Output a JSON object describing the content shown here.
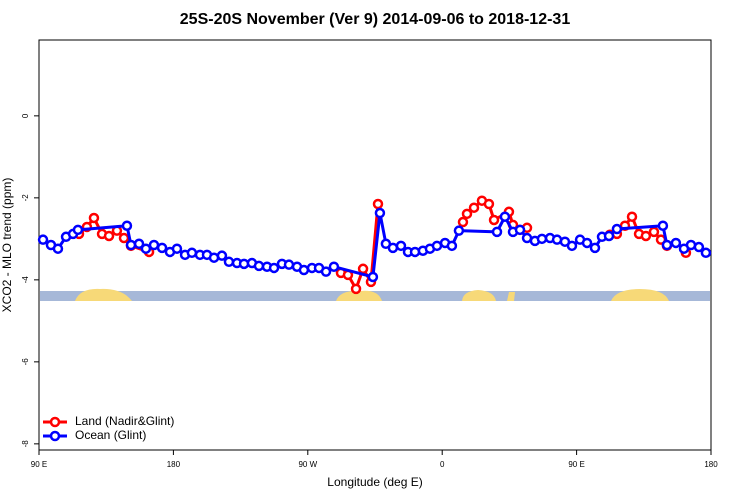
{
  "chart_data": {
    "type": "line",
    "title": "25S-20S November (Ver 9)   2014-09-06 to 2018-12-31",
    "x_label": "Longitude (deg E)",
    "y_label": "XCO2 - MLO trend (ppm)",
    "xlim": [
      90,
      540
    ],
    "ylim": [
      -8.15,
      1.85
    ],
    "xticks": [
      {
        "value": 90,
        "label": "90 E"
      },
      180,
      {
        "value": 270,
        "label": "90 W"
      },
      {
        "value": 360,
        "label": "0"
      },
      {
        "value": 450,
        "label": "90 E"
      },
      {
        "value": 540,
        "label": "180"
      }
    ],
    "yticks": [
      0,
      -2,
      -4,
      -6,
      -8
    ],
    "legend": "lower left",
    "series": [
      {
        "name": "Land (Nadir&Glint)",
        "color": "#ff0000",
        "x": [
          116.8,
          122.1,
          126.8,
          132.2,
          136.9,
          142.2,
          146.9,
          151.6,
          163.7,
          null,
          292.2,
          296.9,
          302.3,
          307.0,
          312.3,
          317.0,
          null,
          373.9,
          376.6,
          381.3,
          386.6,
          391.3,
          394.7,
          404.7,
          407.4,
          412.1,
          416.8,
          null,
          472.3,
          477.0,
          482.4,
          487.1,
          491.8,
          496.4,
          501.8,
          506.5,
          510.5,
          null,
          523.2
        ],
        "values": [
          -2.88,
          -2.71,
          -2.49,
          -2.88,
          -2.93,
          -2.8,
          -2.98,
          -3.17,
          -3.32,
          null,
          -3.83,
          -3.88,
          -4.22,
          -3.73,
          -4.05,
          -2.15,
          null,
          -2.59,
          -2.39,
          -2.24,
          -2.07,
          -2.15,
          -2.54,
          -2.34,
          -2.66,
          -2.78,
          -2.73,
          null,
          -2.9,
          -2.88,
          -2.68,
          -2.46,
          -2.88,
          -2.93,
          -2.83,
          -3.02,
          -3.17,
          null,
          -3.34
        ]
      },
      {
        "name": "Ocean (Glint)",
        "color": "#0000ff",
        "x": [
          92.7,
          98.0,
          102.7,
          108.1,
          112.8,
          116.1,
          148.9,
          151.6,
          157.0,
          161.6,
          167.0,
          172.4,
          177.7,
          182.4,
          187.8,
          192.4,
          197.8,
          202.5,
          207.2,
          212.5,
          217.2,
          222.6,
          227.3,
          232.6,
          237.3,
          242.7,
          247.4,
          252.7,
          257.4,
          262.8,
          267.4,
          272.8,
          277.5,
          282.2,
          287.5,
          313.6,
          318.3,
          322.3,
          327.0,
          332.4,
          337.1,
          341.8,
          347.1,
          351.8,
          356.5,
          361.9,
          366.5,
          371.2,
          396.7,
          402.0,
          407.4,
          412.1,
          416.8,
          422.1,
          426.8,
          432.2,
          436.9,
          442.2,
          446.9,
          452.3,
          457.0,
          462.3,
          467.0,
          471.7,
          477.0,
          507.8,
          510.5,
          516.5,
          521.9,
          526.6,
          531.9,
          536.6
        ],
        "values": [
          -3.02,
          -3.15,
          -3.24,
          -2.95,
          -2.88,
          -2.78,
          -2.68,
          -3.15,
          -3.12,
          -3.24,
          -3.15,
          -3.22,
          -3.32,
          -3.24,
          -3.39,
          -3.34,
          -3.39,
          -3.39,
          -3.46,
          -3.41,
          -3.56,
          -3.59,
          -3.61,
          -3.59,
          -3.66,
          -3.68,
          -3.71,
          -3.61,
          -3.63,
          -3.68,
          -3.76,
          -3.71,
          -3.71,
          -3.8,
          -3.68,
          -3.93,
          -2.37,
          -3.12,
          -3.22,
          -3.17,
          -3.32,
          -3.32,
          -3.29,
          -3.24,
          -3.17,
          -3.1,
          -3.17,
          -2.8,
          -2.83,
          -2.46,
          -2.83,
          -2.78,
          -2.98,
          -3.05,
          -3.0,
          -2.98,
          -3.02,
          -3.07,
          -3.17,
          -3.02,
          -3.1,
          -3.22,
          -2.95,
          -2.93,
          -2.76,
          -2.68,
          -3.15,
          -3.1,
          -3.24,
          -3.15,
          -3.2,
          -3.34
        ]
      }
    ]
  }
}
